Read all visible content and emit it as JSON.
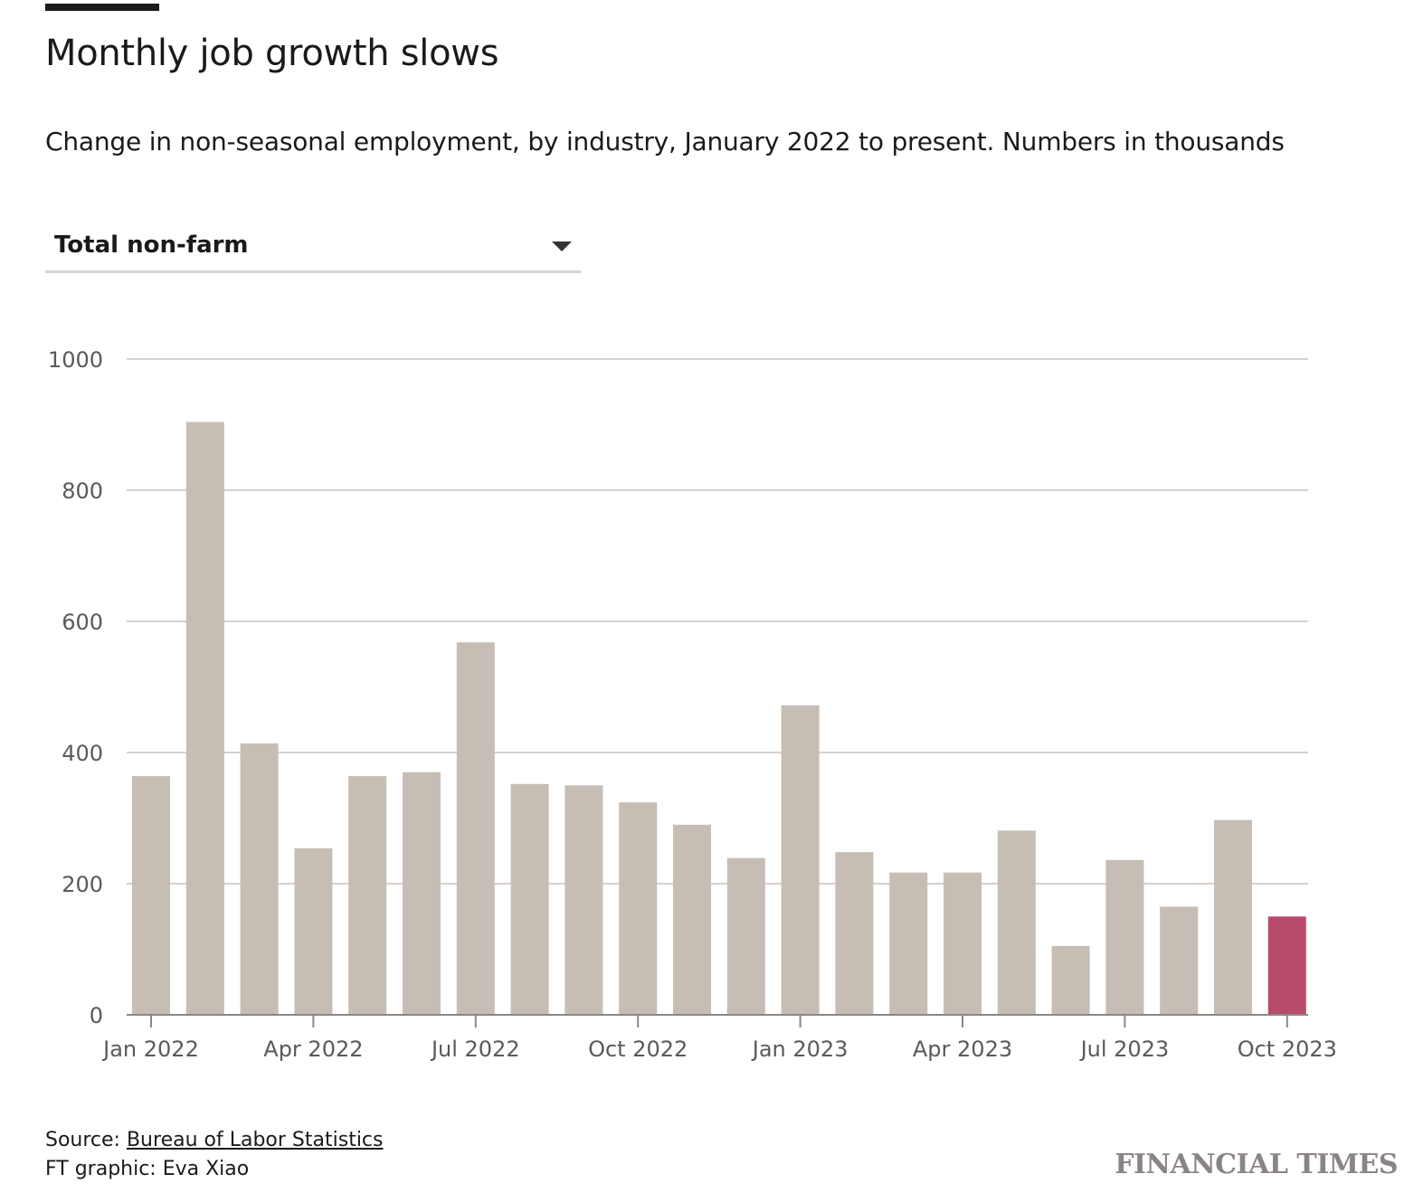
{
  "header": {
    "title": "Monthly job growth slows",
    "subtitle": "Change in non-seasonal employment, by industry, January 2022 to present. Numbers in thousands"
  },
  "selector": {
    "value": "Total non-farm"
  },
  "footer": {
    "source_prefix": "Source: ",
    "source_link": "Bureau of Labor Statistics",
    "credit": "FT graphic: Eva Xiao",
    "logo": "FINANCIAL TIMES"
  },
  "colors": {
    "bar": "#c6bdb5",
    "highlight": "#b84a6b",
    "grid": "#d6d1cd",
    "axis": "#8c8783"
  },
  "chart_data": {
    "type": "bar",
    "title": "Monthly job growth slows",
    "xlabel": "",
    "ylabel": "",
    "ylim": [
      0,
      1000
    ],
    "yticks": [
      0,
      200,
      400,
      600,
      800,
      1000
    ],
    "grid": true,
    "categories": [
      "Jan 2022",
      "Feb 2022",
      "Mar 2022",
      "Apr 2022",
      "May 2022",
      "Jun 2022",
      "Jul 2022",
      "Aug 2022",
      "Sep 2022",
      "Oct 2022",
      "Nov 2022",
      "Dec 2022",
      "Jan 2023",
      "Feb 2023",
      "Mar 2023",
      "Apr 2023",
      "May 2023",
      "Jun 2023",
      "Jul 2023",
      "Aug 2023",
      "Sep 2023",
      "Oct 2023"
    ],
    "values": [
      364,
      904,
      414,
      254,
      364,
      370,
      568,
      352,
      350,
      324,
      290,
      239,
      472,
      248,
      217,
      217,
      281,
      105,
      236,
      165,
      297,
      150
    ],
    "highlight_index": 21,
    "xtick_labels": [
      "Jan 2022",
      "Apr 2022",
      "Jul 2022",
      "Oct 2022",
      "Jan 2023",
      "Apr 2023",
      "Jul 2023",
      "Oct 2023"
    ],
    "xtick_indices": [
      0,
      3,
      6,
      9,
      12,
      15,
      18,
      21
    ]
  }
}
